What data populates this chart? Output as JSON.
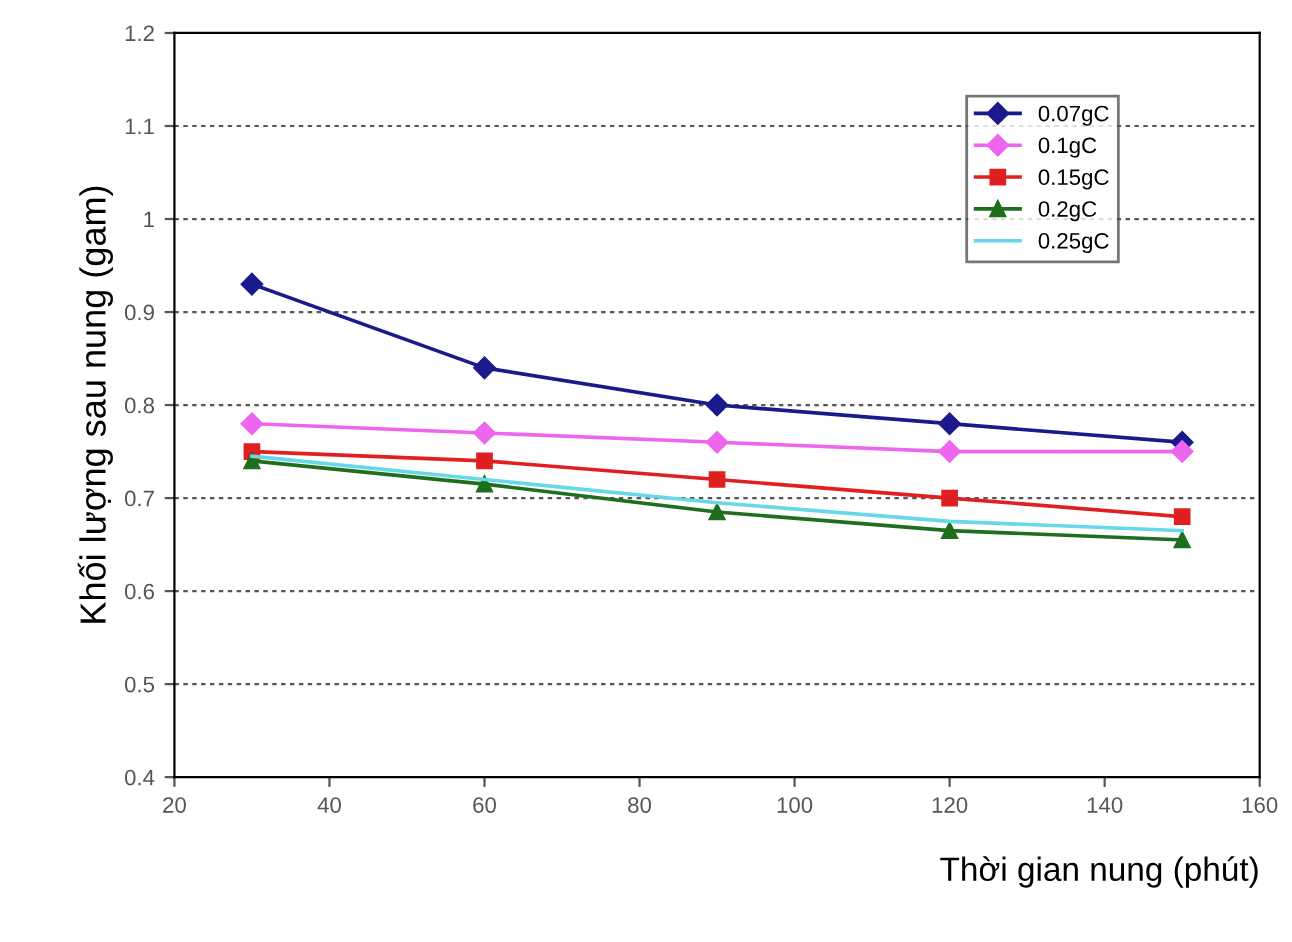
{
  "chart_data": {
    "type": "line",
    "xlabel": "Thời gian nung (phút)",
    "ylabel": "Khối lượng sau nung (gam)",
    "x": [
      30,
      60,
      90,
      120,
      150
    ],
    "series": [
      {
        "name": "0.07gC",
        "color": "#1a1a8c",
        "marker": "diamond",
        "values": [
          0.93,
          0.84,
          0.8,
          0.78,
          0.76
        ]
      },
      {
        "name": "0.1gC",
        "color": "#ee66ee",
        "marker": "diamond",
        "values": [
          0.78,
          0.77,
          0.76,
          0.75,
          0.75
        ]
      },
      {
        "name": "0.15gC",
        "color": "#e02020",
        "marker": "square",
        "values": [
          0.75,
          0.74,
          0.72,
          0.7,
          0.68
        ]
      },
      {
        "name": "0.2gC",
        "color": "#1e6e1e",
        "marker": "triangle",
        "values": [
          0.74,
          0.715,
          0.685,
          0.665,
          0.655
        ]
      },
      {
        "name": "0.25gC",
        "color": "#66d8e8",
        "marker": "none",
        "values": [
          0.745,
          0.72,
          0.695,
          0.675,
          0.665
        ]
      }
    ],
    "xlim": [
      20,
      160
    ],
    "xticks": [
      20,
      40,
      60,
      80,
      100,
      120,
      140,
      160
    ],
    "ylim": [
      0.4,
      1.2
    ],
    "yticks": [
      0.4,
      0.5,
      0.6,
      0.7,
      0.8,
      0.9,
      1,
      1.1,
      1.2
    ],
    "grid": "y",
    "legend": "top right"
  }
}
